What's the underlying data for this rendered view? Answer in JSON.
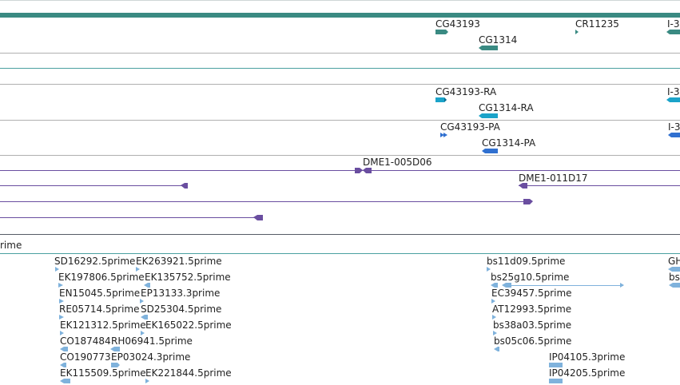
{
  "colors": {
    "gene_teal": "#3a8a82",
    "transcript_cyan": "#1ba3c9",
    "protein_blue": "#3070d0",
    "bac_purple": "#6a4ea0",
    "est_lightblue": "#7fb2dc",
    "separator_gray": "#b0b0b0",
    "separator_teal": "#4aa0a0"
  },
  "genes": {
    "g1": "CG43193",
    "g2": "CR11235",
    "g3": "CG1314",
    "g4": "I-3"
  },
  "transcripts": {
    "t1": "CG43193-RA",
    "t2": "CG1314-RA",
    "t3": "I-3"
  },
  "proteins": {
    "p1": "CG43193-PA",
    "p2": "CG1314-PA",
    "p3": "I-3"
  },
  "bacs": {
    "b1": "DME1-005D06",
    "b2": "DME1-011D17"
  },
  "est_track": {
    "title": "rime"
  },
  "ests": {
    "col1": [
      "SD16292.5prime",
      "EK197806.5prime",
      "EN15045.5prime",
      "RE05714.5prime",
      "EK121312.5prime",
      "CO187484",
      "CO190773",
      "EK115509.5prime"
    ],
    "col2": [
      "EK263921.5prime",
      "EK135752.5prime",
      "EP13133.3prime",
      "SD25304.5prime",
      "EK165022.5prime",
      "RH06941.5prime",
      "EP03024.3prime",
      "EK221844.5prime"
    ],
    "col3": [
      "bs11d09.5prime",
      "bs25g10.5prime",
      "EC39457.5prime",
      "AT12993.5prime",
      "bs38a03.5prime",
      "bs05c06.5prime",
      "IP04105.3prime",
      "IP04205.5prime"
    ],
    "col4": [
      "GH",
      "bs"
    ]
  }
}
